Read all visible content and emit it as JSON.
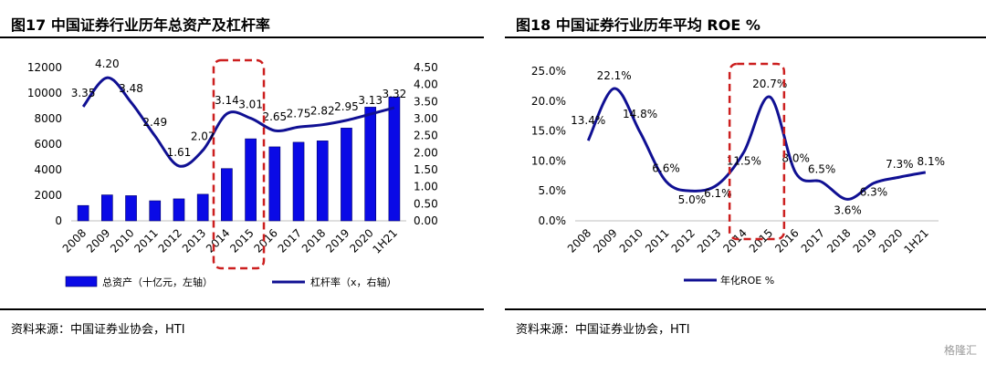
{
  "left": {
    "title": "图17 中国证券行业历年总资产及杠杆率",
    "source": "资料来源：中国证券业协会，HTI",
    "chart_data": {
      "type": "bar",
      "categories": [
        "2008",
        "2009",
        "2010",
        "2011",
        "2012",
        "2013",
        "2014",
        "2015",
        "2016",
        "2017",
        "2018",
        "2019",
        "2020",
        "1H21"
      ],
      "series": [
        {
          "name": "总资产（十亿元，左轴）",
          "type": "bar",
          "axis": "left",
          "values": [
            1200,
            2030,
            1970,
            1570,
            1720,
            2080,
            4090,
            6420,
            5790,
            6150,
            6260,
            7260,
            8900,
            9700
          ]
        },
        {
          "name": "杠杆率（x，右轴）",
          "type": "line",
          "axis": "right",
          "values": [
            3.35,
            4.2,
            3.48,
            2.49,
            1.61,
            2.07,
            3.14,
            3.01,
            2.65,
            2.75,
            2.82,
            2.95,
            3.13,
            3.32
          ],
          "labels": [
            "3.35",
            "4.20",
            "3.48",
            "2.49",
            "1.61",
            "2.07",
            "3.14",
            "3.01",
            "2.65",
            "2.75",
            "2.82",
            "2.95",
            "3.13",
            "3.32"
          ]
        }
      ],
      "ylim_left": [
        0,
        12000
      ],
      "yticks_left": [
        "0",
        "2000",
        "4000",
        "6000",
        "8000",
        "10000",
        "12000"
      ],
      "ylim_right": [
        0,
        4.5
      ],
      "yticks_right": [
        "0.00",
        "0.50",
        "1.00",
        "1.50",
        "2.00",
        "2.50",
        "3.00",
        "3.50",
        "4.00",
        "4.50"
      ],
      "highlight_categories": [
        "2014",
        "2015"
      ],
      "legend_position": "bottom",
      "colors": {
        "bar": "#0a0ae6",
        "line": "#101093",
        "highlight": "#cc1f1f"
      }
    }
  },
  "right": {
    "title": "图18 中国证券行业历年平均 ROE %",
    "source": "资料来源：中国证券业协会，HTI",
    "chart_data": {
      "type": "line",
      "categories": [
        "2008",
        "2009",
        "2010",
        "2011",
        "2012",
        "2013",
        "2014",
        "2015",
        "2016",
        "2017",
        "2018",
        "2019",
        "2020",
        "1H21"
      ],
      "series": [
        {
          "name": "年化ROE %",
          "values": [
            13.4,
            22.1,
            14.8,
            6.6,
            5.0,
            6.1,
            11.5,
            20.7,
            8.0,
            6.5,
            3.6,
            6.3,
            7.3,
            8.1
          ],
          "labels": [
            "13.4%",
            "22.1%",
            "14.8%",
            "6.6%",
            "5.0%",
            "6.1%",
            "11.5%",
            "20.7%",
            "8.0%",
            "6.5%",
            "3.6%",
            "6.3%",
            "7.3%",
            "8.1%"
          ]
        }
      ],
      "ylim": [
        0,
        25
      ],
      "yticks": [
        "0.0%",
        "5.0%",
        "10.0%",
        "15.0%",
        "20.0%",
        "25.0%"
      ],
      "highlight_categories": [
        "2014",
        "2015"
      ],
      "legend_position": "bottom",
      "colors": {
        "line": "#101093",
        "highlight": "#cc1f1f"
      }
    }
  },
  "watermark": "格隆汇"
}
